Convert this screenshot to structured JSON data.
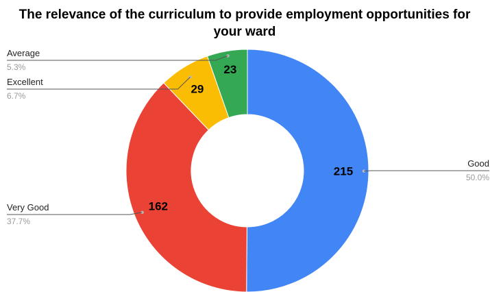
{
  "chart_data": {
    "type": "pie",
    "donut": true,
    "title_lines": [
      "The relevance of the curriculum to provide employment opportunities for",
      "your ward"
    ],
    "slices": [
      {
        "label": "Good",
        "value": 215,
        "percent": "50.0%",
        "color": "#4285F4"
      },
      {
        "label": "Very Good",
        "value": 162,
        "percent": "37.7%",
        "color": "#EA4335"
      },
      {
        "label": "Excellent",
        "value": 29,
        "percent": "6.7%",
        "color": "#FBBC04"
      },
      {
        "label": "Average",
        "value": 23,
        "percent": "5.3%",
        "color": "#34A853"
      }
    ],
    "legend": "leader-labels"
  }
}
